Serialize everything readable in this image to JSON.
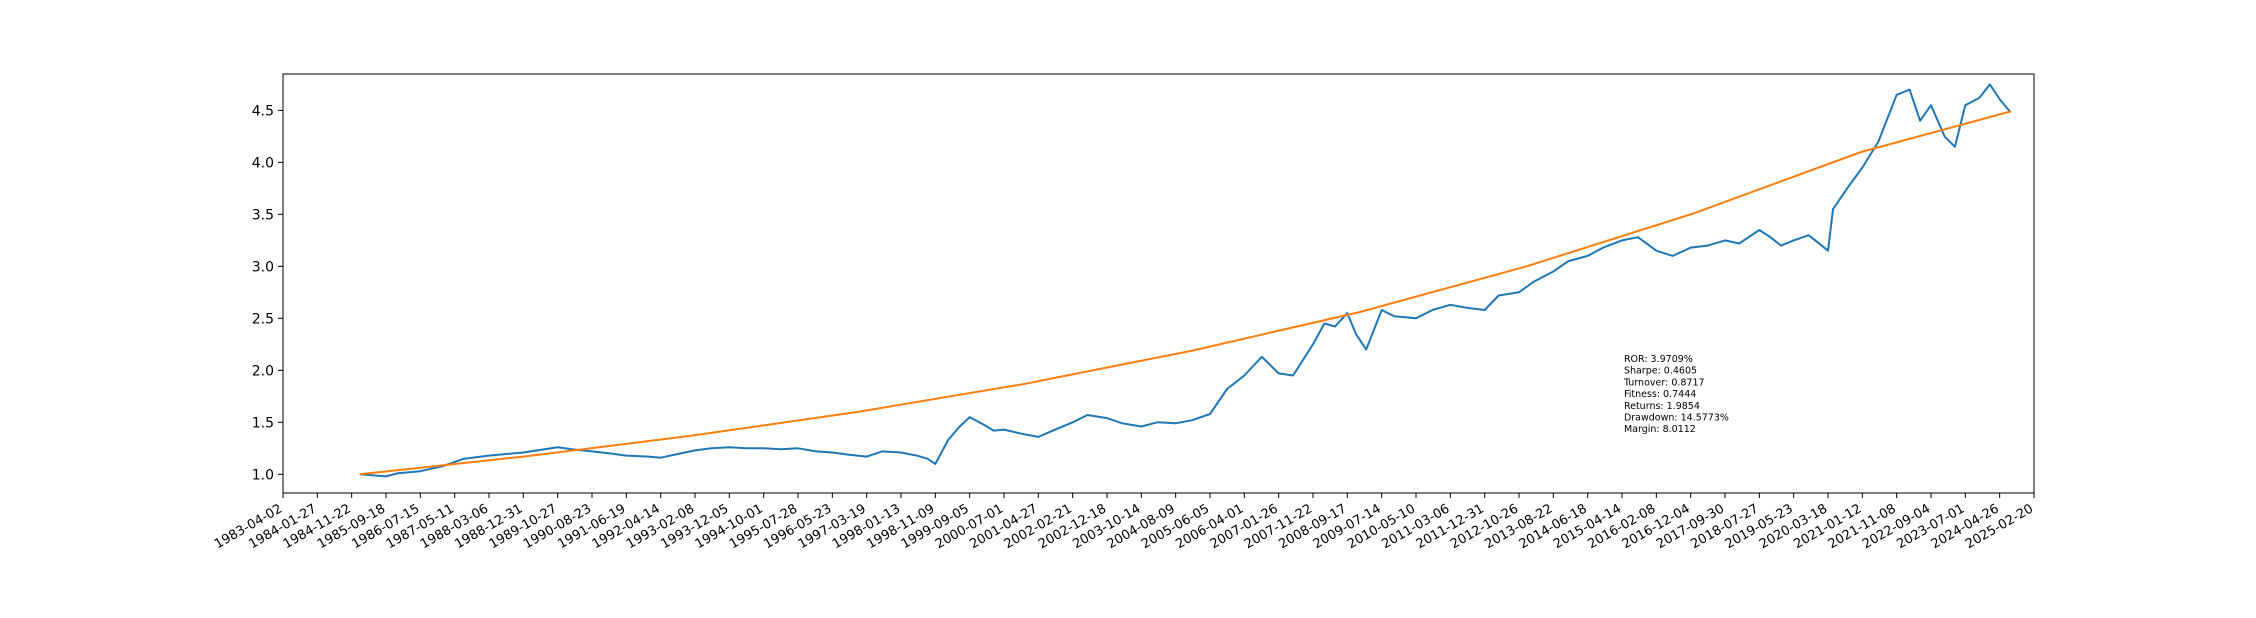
{
  "chart_data": {
    "type": "line",
    "title": "",
    "xlabel": "",
    "ylabel": "",
    "grid": false,
    "xlim": [
      "1983-04-02",
      "2025-02-20"
    ],
    "ylim": [
      0.82,
      4.85
    ],
    "y_ticks": [
      1.0,
      1.5,
      2.0,
      2.5,
      3.0,
      3.5,
      4.0,
      4.5
    ],
    "y_tick_labels": [
      "1.0",
      "1.5",
      "2.0",
      "2.5",
      "3.0",
      "3.5",
      "4.0",
      "4.5"
    ],
    "x_ticks": [
      "1983-04-02",
      "1984-01-27",
      "1984-11-22",
      "1985-09-18",
      "1986-07-15",
      "1987-05-11",
      "1988-03-06",
      "1988-12-31",
      "1989-10-27",
      "1990-08-23",
      "1991-06-19",
      "1992-04-14",
      "1993-02-08",
      "1993-12-05",
      "1994-10-01",
      "1995-07-28",
      "1996-05-23",
      "1997-03-19",
      "1998-01-13",
      "1998-11-09",
      "1999-09-05",
      "2000-07-01",
      "2001-04-27",
      "2002-02-21",
      "2002-12-18",
      "2003-10-14",
      "2004-08-09",
      "2005-06-05",
      "2006-04-01",
      "2007-01-26",
      "2007-11-22",
      "2008-09-17",
      "2009-07-14",
      "2010-05-10",
      "2011-03-06",
      "2011-12-31",
      "2012-10-26",
      "2013-08-22",
      "2014-06-18",
      "2015-04-14",
      "2016-02-08",
      "2016-12-04",
      "2017-09-30",
      "2018-07-27",
      "2019-05-23",
      "2020-03-18",
      "2021-01-12",
      "2021-11-08",
      "2022-09-04",
      "2023-07-01",
      "2024-04-26",
      "2025-02-20"
    ],
    "series": [
      {
        "color": "#1f77b4",
        "x": [
          "1985-02-01",
          "1985-09-18",
          "1986-01-01",
          "1986-07-15",
          "1987-02-01",
          "1987-08-01",
          "1988-03-06",
          "1988-12-31",
          "1989-05-01",
          "1989-10-27",
          "1990-03-01",
          "1990-08-23",
          "1991-02-01",
          "1991-06-19",
          "1992-01-01",
          "1992-04-14",
          "1992-10-01",
          "1993-02-08",
          "1993-07-01",
          "1993-12-05",
          "1994-05-01",
          "1994-10-01",
          "1995-03-01",
          "1995-07-28",
          "1996-01-01",
          "1996-05-23",
          "1996-10-01",
          "1997-03-19",
          "1997-08-01",
          "1998-01-13",
          "1998-06-01",
          "1998-09-01",
          "1998-11-09",
          "1999-03-01",
          "1999-06-01",
          "1999-09-05",
          "2000-01-01",
          "2000-04-01",
          "2000-07-01",
          "2000-12-01",
          "2001-04-27",
          "2001-09-01",
          "2002-02-21",
          "2002-07-01",
          "2002-12-18",
          "2003-05-01",
          "2003-10-14",
          "2004-03-01",
          "2004-08-09",
          "2005-01-01",
          "2005-06-05",
          "2005-11-01",
          "2006-04-01",
          "2006-09-01",
          "2007-01-26",
          "2007-06-01",
          "2007-11-22",
          "2008-03-01",
          "2008-06-01",
          "2008-09-17",
          "2008-12-01",
          "2009-03-01",
          "2009-07-14",
          "2009-11-01",
          "2010-05-10",
          "2010-10-01",
          "2011-03-06",
          "2011-08-01",
          "2011-12-31",
          "2012-05-01",
          "2012-10-26",
          "2013-03-01",
          "2013-08-22",
          "2014-01-01",
          "2014-06-18",
          "2014-11-01",
          "2015-04-14",
          "2015-09-01",
          "2016-02-08",
          "2016-07-01",
          "2016-12-04",
          "2017-05-01",
          "2017-09-30",
          "2018-02-01",
          "2018-07-27",
          "2018-11-01",
          "2019-02-01",
          "2019-05-23",
          "2019-10-01",
          "2020-03-18",
          "2020-05-01",
          "2020-09-01",
          "2021-01-12",
          "2021-06-01",
          "2021-11-08",
          "2022-03-01",
          "2022-06-01",
          "2022-09-04",
          "2023-01-01",
          "2023-04-01",
          "2023-07-01",
          "2023-11-01",
          "2024-02-01",
          "2024-05-01",
          "2024-08-01"
        ],
        "values": [
          1.0,
          0.98,
          1.01,
          1.03,
          1.08,
          1.15,
          1.18,
          1.21,
          1.23,
          1.26,
          1.24,
          1.22,
          1.2,
          1.18,
          1.17,
          1.16,
          1.2,
          1.23,
          1.25,
          1.26,
          1.25,
          1.25,
          1.24,
          1.25,
          1.22,
          1.21,
          1.19,
          1.17,
          1.22,
          1.21,
          1.18,
          1.15,
          1.1,
          1.33,
          1.45,
          1.55,
          1.48,
          1.42,
          1.43,
          1.39,
          1.36,
          1.42,
          1.5,
          1.57,
          1.54,
          1.49,
          1.46,
          1.5,
          1.49,
          1.52,
          1.58,
          1.82,
          1.95,
          2.13,
          1.97,
          1.95,
          2.25,
          2.45,
          2.42,
          2.55,
          2.35,
          2.2,
          2.58,
          2.52,
          2.5,
          2.58,
          2.63,
          2.6,
          2.58,
          2.72,
          2.75,
          2.85,
          2.95,
          3.05,
          3.1,
          3.18,
          3.25,
          3.28,
          3.15,
          3.1,
          3.18,
          3.2,
          3.25,
          3.22,
          3.35,
          3.28,
          3.2,
          3.25,
          3.3,
          3.15,
          3.55,
          3.75,
          3.95,
          4.2,
          4.65,
          4.7,
          4.4,
          4.55,
          4.25,
          4.15,
          4.55,
          4.62,
          4.75,
          4.6,
          4.48
        ]
      },
      {
        "color": "#ff7f0e",
        "x": [
          "1985-02-01",
          "1989-01-01",
          "1993-01-01",
          "1997-01-01",
          "2001-01-01",
          "2005-01-01",
          "2009-01-01",
          "2013-01-01",
          "2017-01-01",
          "2021-01-01",
          "2024-08-01"
        ],
        "values": [
          1.0,
          1.17,
          1.37,
          1.6,
          1.87,
          2.19,
          2.56,
          3.0,
          3.51,
          4.1,
          4.49
        ]
      }
    ],
    "annotations": [
      "ROR: 3.9709%",
      "Sharpe: 0.4605",
      "Turnover: 0.8717",
      "Fitness: 0.7444",
      "Returns: 1.9854",
      "Drawdown: 14.5773%",
      "Margin: 8.0112"
    ],
    "annotation_anchor": {
      "date": "2015-05-01",
      "value": 2.08
    }
  }
}
